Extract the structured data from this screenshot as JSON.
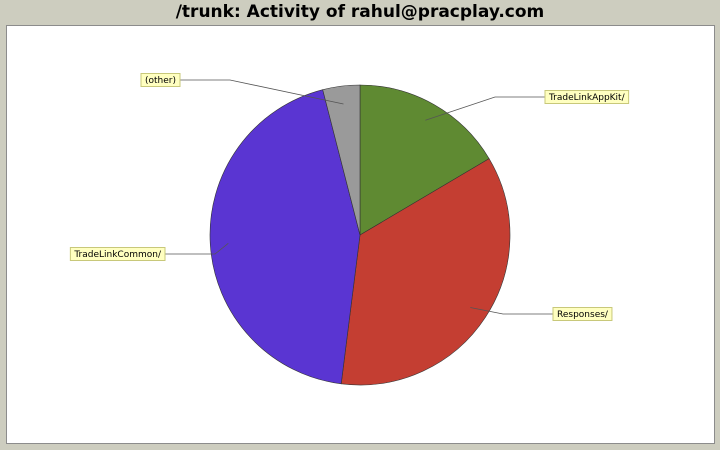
{
  "chart_data": {
    "type": "pie",
    "title": "/trunk: Activity of rahul@pracplay.com",
    "slices": [
      {
        "label": "TradeLinkAppKit/",
        "value": 16.5,
        "color": "#5f8a32"
      },
      {
        "label": "Responses/",
        "value": 35.5,
        "color": "#c43e32"
      },
      {
        "label": "TradeLinkCommon/",
        "value": 44.0,
        "color": "#5a35d2"
      },
      {
        "label": "(other)",
        "value": 4.0,
        "color": "#9a9a9a"
      }
    ],
    "start": "12 o'clock",
    "direction": "clockwise"
  }
}
